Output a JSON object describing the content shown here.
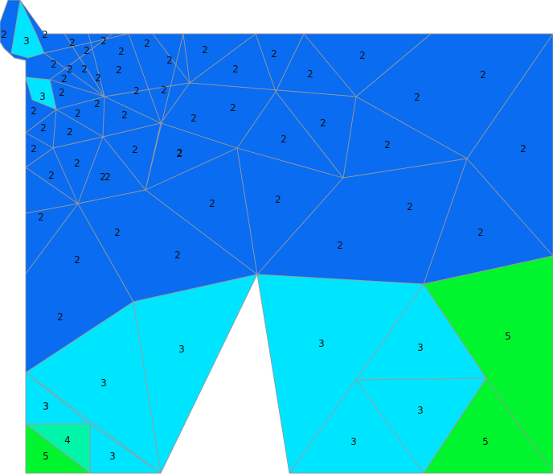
{
  "colors": {
    "2": "#0a6cf0",
    "3": "#00e5ff",
    "4": "#00f5a8",
    "5": "#00f52f"
  },
  "regions": [
    {
      "label": "2",
      "material": "2"
    },
    {
      "label": "3",
      "material": "3"
    },
    {
      "label": "3",
      "material": "3"
    },
    {
      "label": "3",
      "material": "3"
    },
    {
      "label": "3",
      "material": "3"
    },
    {
      "label": "3",
      "material": "3"
    },
    {
      "label": "3",
      "material": "3"
    },
    {
      "label": "3",
      "material": "3"
    },
    {
      "label": "3",
      "material": "3"
    },
    {
      "label": "4",
      "material": "4"
    },
    {
      "label": "5",
      "material": "5"
    },
    {
      "label": "5",
      "material": "5"
    },
    {
      "label": "5",
      "material": "5"
    },
    {
      "label": "3",
      "material": "3"
    },
    {
      "label": "3",
      "material": "3"
    },
    {
      "label": "3",
      "material": "3"
    }
  ],
  "element_labels": [
    "2",
    "2",
    "2",
    "2",
    "2",
    "2",
    "2",
    "2",
    "2",
    "2",
    "2",
    "2",
    "2",
    "2",
    "2",
    "2",
    "2",
    "2",
    "2",
    "2",
    "2",
    "2",
    "2",
    "2",
    "2",
    "2",
    "2",
    "2",
    "2",
    "2",
    "2",
    "2",
    "2",
    "2",
    "2",
    "2",
    "2",
    "2",
    "2",
    "2",
    "2",
    "2",
    "2",
    "2",
    "2",
    "2",
    "2",
    "2",
    "2",
    "2",
    "2",
    "2",
    "2",
    "2"
  ]
}
